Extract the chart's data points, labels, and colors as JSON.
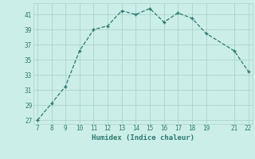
{
  "x": [
    7,
    8,
    9,
    10,
    11,
    12,
    13,
    14,
    15,
    16,
    17,
    18,
    19,
    21,
    22
  ],
  "y": [
    27,
    29.2,
    31.5,
    36.2,
    39.0,
    39.5,
    41.5,
    41.0,
    41.8,
    40.0,
    41.2,
    40.5,
    38.5,
    36.2,
    33.5
  ],
  "xlim": [
    6.7,
    22.3
  ],
  "ylim": [
    26.5,
    42.5
  ],
  "xticks": [
    7,
    8,
    9,
    10,
    11,
    12,
    13,
    14,
    15,
    16,
    17,
    18,
    19,
    21,
    22
  ],
  "yticks": [
    27,
    29,
    31,
    33,
    35,
    37,
    39,
    41
  ],
  "xlabel": "Humidex (Indice chaleur)",
  "background_color": "#cceee8",
  "line_color": "#2d7a70",
  "grid_color": "#aad4cc",
  "text_color": "#2d7a70"
}
